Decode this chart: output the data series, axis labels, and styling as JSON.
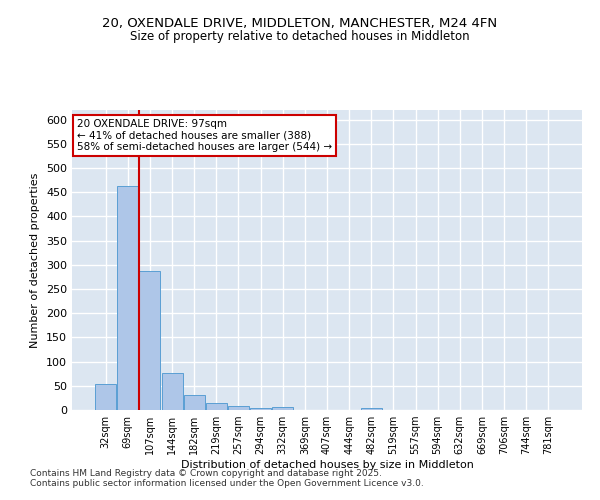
{
  "title_line1": "20, OXENDALE DRIVE, MIDDLETON, MANCHESTER, M24 4FN",
  "title_line2": "Size of property relative to detached houses in Middleton",
  "xlabel": "Distribution of detached houses by size in Middleton",
  "ylabel": "Number of detached properties",
  "categories": [
    "32sqm",
    "69sqm",
    "107sqm",
    "144sqm",
    "182sqm",
    "219sqm",
    "257sqm",
    "294sqm",
    "332sqm",
    "369sqm",
    "407sqm",
    "444sqm",
    "482sqm",
    "519sqm",
    "557sqm",
    "594sqm",
    "632sqm",
    "669sqm",
    "706sqm",
    "744sqm",
    "781sqm"
  ],
  "values": [
    53,
    463,
    288,
    77,
    31,
    15,
    9,
    5,
    6,
    0,
    0,
    0,
    5,
    0,
    0,
    0,
    0,
    0,
    0,
    0,
    0
  ],
  "bar_color": "#aec6e8",
  "bar_edgecolor": "#5a9fd4",
  "vline_color": "#cc0000",
  "vline_x_index": 2,
  "annotation_text": "20 OXENDALE DRIVE: 97sqm\n← 41% of detached houses are smaller (388)\n58% of semi-detached houses are larger (544) →",
  "annotation_box_color": "#ffffff",
  "annotation_box_edgecolor": "#cc0000",
  "ylim": [
    0,
    620
  ],
  "yticks": [
    0,
    50,
    100,
    150,
    200,
    250,
    300,
    350,
    400,
    450,
    500,
    550,
    600
  ],
  "background_color": "#dce6f1",
  "grid_color": "#ffffff",
  "footer_line1": "Contains HM Land Registry data © Crown copyright and database right 2025.",
  "footer_line2": "Contains public sector information licensed under the Open Government Licence v3.0."
}
